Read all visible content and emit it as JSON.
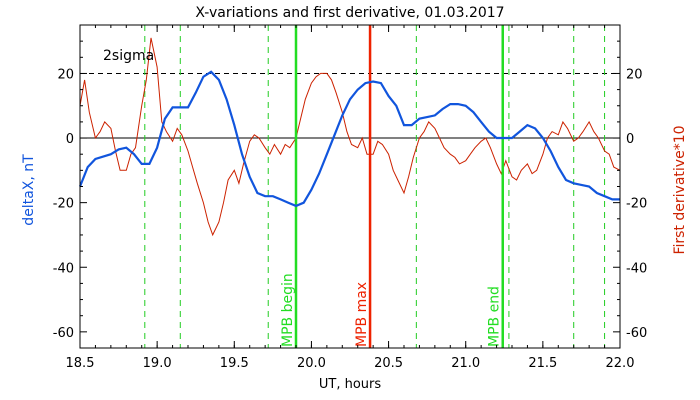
{
  "chart_data": {
    "type": "line",
    "title": "X-variations and first derivative, 01.03.2017",
    "xlabel": "UT, hours",
    "ylabel_left": "deltaX, nT",
    "ylabel_right": "First derivative*10",
    "xlim": [
      18.5,
      22.0
    ],
    "ylim": [
      -65,
      35
    ],
    "x_ticks": [
      "18.5",
      "19.0",
      "19.5",
      "20.0",
      "20.5",
      "21.0",
      "21.5",
      "22.0"
    ],
    "y_ticks": [
      "-60",
      "-40",
      "-20",
      "0",
      "20"
    ],
    "sigma_label": "2sigma",
    "sigma_level": 20,
    "zero_level": 0,
    "colors": {
      "deltaX": "#1155dd",
      "derivative": "#cc2200",
      "mpb": "#22dd22",
      "mpb_max": "#ee2200",
      "dashed_green": "#22cc22"
    },
    "series": [
      {
        "name": "deltaX, nT",
        "x": [
          18.5,
          18.55,
          18.6,
          18.7,
          18.75,
          18.8,
          18.85,
          18.9,
          18.95,
          19.0,
          19.05,
          19.1,
          19.15,
          19.2,
          19.25,
          19.3,
          19.35,
          19.4,
          19.45,
          19.5,
          19.55,
          19.6,
          19.65,
          19.7,
          19.75,
          19.8,
          19.85,
          19.9,
          19.95,
          20.0,
          20.05,
          20.1,
          20.15,
          20.2,
          20.25,
          20.3,
          20.35,
          20.4,
          20.45,
          20.5,
          20.55,
          20.6,
          20.65,
          20.7,
          20.75,
          20.8,
          20.85,
          20.9,
          20.95,
          21.0,
          21.05,
          21.1,
          21.15,
          21.2,
          21.25,
          21.3,
          21.35,
          21.4,
          21.45,
          21.5,
          21.55,
          21.6,
          21.65,
          21.7,
          21.75,
          21.8,
          21.85,
          21.9,
          21.95,
          22.0
        ],
        "values": [
          -15,
          -9,
          -6.5,
          -5,
          -3.5,
          -3,
          -5,
          -8,
          -8,
          -3,
          6,
          9.5,
          9.5,
          9.5,
          14,
          19,
          20.5,
          18,
          12,
          4,
          -5,
          -12,
          -17,
          -18,
          -18,
          -19,
          -20,
          -21,
          -20,
          -16,
          -11,
          -5,
          1,
          7,
          12,
          15,
          17,
          17.5,
          17,
          13,
          10,
          4,
          4,
          6,
          6.5,
          7,
          9,
          10.5,
          10.5,
          10,
          8,
          5,
          2,
          0,
          0,
          0,
          2,
          4,
          3,
          0,
          -4,
          -9,
          -13,
          -14,
          -14.5,
          -15,
          -17,
          -18,
          -19,
          -19
        ]
      },
      {
        "name": "First derivative*10",
        "x": [
          18.5,
          18.53,
          18.56,
          18.6,
          18.63,
          18.66,
          18.7,
          18.73,
          18.76,
          18.8,
          18.83,
          18.86,
          18.9,
          18.93,
          18.96,
          19.0,
          19.03,
          19.06,
          19.1,
          19.13,
          19.16,
          19.2,
          19.23,
          19.26,
          19.3,
          19.33,
          19.36,
          19.4,
          19.43,
          19.46,
          19.5,
          19.53,
          19.56,
          19.6,
          19.63,
          19.66,
          19.7,
          19.73,
          19.76,
          19.8,
          19.83,
          19.86,
          19.9,
          19.93,
          19.96,
          20.0,
          20.03,
          20.06,
          20.1,
          20.13,
          20.16,
          20.2,
          20.23,
          20.26,
          20.3,
          20.33,
          20.36,
          20.4,
          20.43,
          20.46,
          20.5,
          20.53,
          20.56,
          20.6,
          20.63,
          20.66,
          20.7,
          20.73,
          20.76,
          20.8,
          20.83,
          20.86,
          20.9,
          20.93,
          20.96,
          21.0,
          21.03,
          21.06,
          21.1,
          21.13,
          21.16,
          21.2,
          21.23,
          21.26,
          21.3,
          21.33,
          21.36,
          21.4,
          21.43,
          21.46,
          21.5,
          21.53,
          21.56,
          21.6,
          21.63,
          21.66,
          21.7,
          21.73,
          21.76,
          21.8,
          21.83,
          21.86,
          21.9,
          21.93,
          21.96,
          22.0
        ],
        "values": [
          10,
          18,
          8,
          0,
          2,
          5,
          3,
          -4,
          -10,
          -10,
          -5,
          -3,
          10,
          18,
          31,
          22,
          5,
          2,
          -1,
          3,
          1,
          -4,
          -9,
          -14,
          -20,
          -26,
          -30,
          -26,
          -20,
          -13,
          -10,
          -14,
          -8,
          -1,
          1,
          0,
          -3,
          -5,
          -2,
          -5,
          -2,
          -3,
          0,
          6,
          12,
          17,
          19,
          20,
          20,
          18,
          14,
          8,
          2,
          -2,
          -3,
          0,
          -5,
          -5,
          -1,
          -2,
          -5,
          -10,
          -13,
          -17,
          -12,
          -6,
          0,
          2,
          5,
          3,
          0,
          -3,
          -5,
          -6,
          -8,
          -7,
          -5,
          -3,
          -1,
          0,
          -3,
          -8,
          -11,
          -7,
          -12,
          -13,
          -10,
          -8,
          -11,
          -10,
          -5,
          0,
          2,
          1,
          5,
          3,
          -1,
          0,
          2,
          5,
          2,
          0,
          -4,
          -5,
          -9,
          -10
        ]
      }
    ],
    "markers": [
      {
        "x": 19.9,
        "label": "MPB begin",
        "color": "#22dd22"
      },
      {
        "x": 20.38,
        "label": "MPB max",
        "color": "#ee2200"
      },
      {
        "x": 21.24,
        "label": "MPB end",
        "color": "#22dd22"
      }
    ],
    "dashed_verticals": [
      18.92,
      19.15,
      19.72,
      20.68,
      21.28,
      21.7,
      21.9
    ]
  }
}
